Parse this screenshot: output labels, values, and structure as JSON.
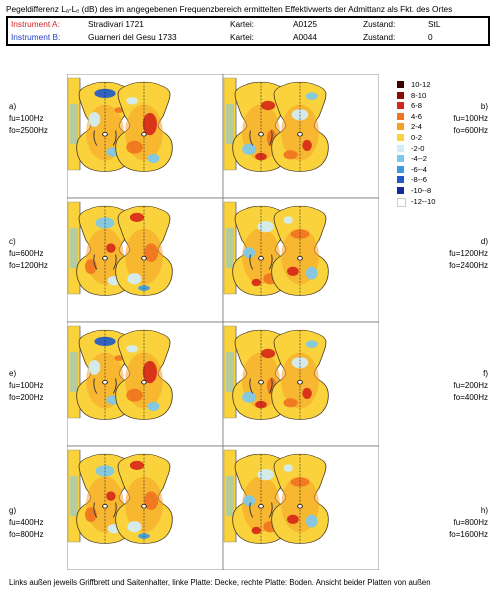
{
  "header": {
    "title": "Pegeldifferenz Lₐ-Lₑ (dB) des im angegebenen Frequenzbereich ermittelten Effektivwerts der Admittanz als Fkt. des Ortes"
  },
  "instruments": [
    {
      "label": "Instrument A:",
      "name": "Stradivari 1721",
      "kartei_label": "Kartei:",
      "kartei": "A0125",
      "zustand_label": "Zustand:",
      "zustand": "StL",
      "color": "#d32020"
    },
    {
      "label": "Instrument B:",
      "name": "Guarneri del Gesu 1733",
      "kartei_label": "Kartei:",
      "kartei": "A0044",
      "zustand_label": "Zustand:",
      "zustand": "0",
      "color": "#2040c0"
    }
  ],
  "panels": [
    {
      "id": "a",
      "letter": "a)",
      "fu": "fu=100Hz",
      "fo": "fo=2500Hz"
    },
    {
      "id": "b",
      "letter": "b)",
      "fu": "fu=100Hz",
      "fo": "fo=600Hz"
    },
    {
      "id": "c",
      "letter": "c)",
      "fu": "fu=600Hz",
      "fo": "fo=1200Hz"
    },
    {
      "id": "d",
      "letter": "d)",
      "fu": "fu=1200Hz",
      "fo": "fo=2400Hz"
    },
    {
      "id": "e",
      "letter": "e)",
      "fu": "fu=100Hz",
      "fo": "fo=200Hz"
    },
    {
      "id": "f",
      "letter": "f)",
      "fu": "fu=200Hz",
      "fo": "fo=400Hz"
    },
    {
      "id": "g",
      "letter": "g)",
      "fu": "fu=400Hz",
      "fo": "fo=800Hz"
    },
    {
      "id": "h",
      "letter": "h)",
      "fu": "fu=800Hz",
      "fo": "fo=1600Hz"
    }
  ],
  "legend": [
    {
      "label": "10-12",
      "color": "#3a0000"
    },
    {
      "label": "8-10",
      "color": "#8b0a0a"
    },
    {
      "label": "6-8",
      "color": "#d62818"
    },
    {
      "label": "4-6",
      "color": "#f07420"
    },
    {
      "label": "2-4",
      "color": "#f5a028"
    },
    {
      "label": "0-2",
      "color": "#fad23c"
    },
    {
      "label": "-2-0",
      "color": "#cfeef8"
    },
    {
      "label": "-4--2",
      "color": "#7cc8ec"
    },
    {
      "label": "-6--4",
      "color": "#3a9ae0"
    },
    {
      "label": "-8--6",
      "color": "#1f5ac8"
    },
    {
      "label": "-10--8",
      "color": "#122a9a"
    },
    {
      "label": "-12--10",
      "color": "#ffffff"
    }
  ],
  "footer": "Links außen jeweils Griffbrett und Saitenhalter, linke Platte: Decke, rechte Platte: Boden. Ansicht beider Platten von außen"
}
